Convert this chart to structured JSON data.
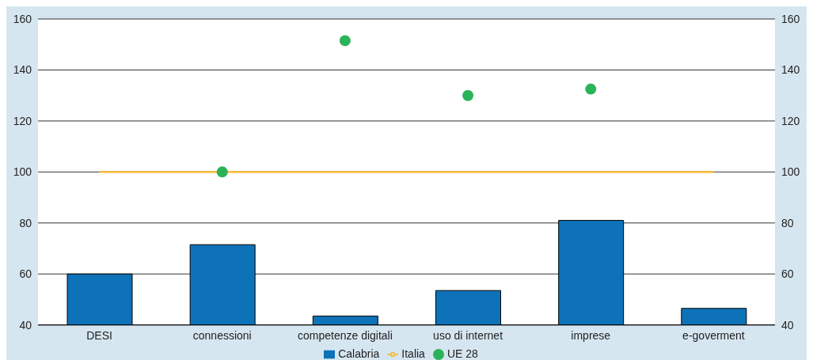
{
  "chart_data": {
    "type": "bar",
    "categories": [
      "DESI",
      "connessioni",
      "competenze digitali",
      "uso di internet",
      "imprese",
      "e-goverment"
    ],
    "series": [
      {
        "name": "Calabria",
        "color": "#0e72b8",
        "values": [
          60,
          71.5,
          43.5,
          53.5,
          81,
          46.5
        ]
      },
      {
        "name": "Italia",
        "type": "line",
        "color": "#f4b93a",
        "values": [
          100,
          100,
          100,
          100,
          100,
          100
        ]
      },
      {
        "name": "UE 28",
        "type": "scatter",
        "color": "#2bb35a",
        "values": [
          null,
          100,
          151.5,
          130,
          132.5,
          null
        ]
      }
    ],
    "ylim": [
      40,
      160
    ],
    "yticks": [
      40,
      60,
      80,
      100,
      120,
      140,
      160
    ],
    "y2lim": [
      40,
      160
    ],
    "y2ticks": [
      40,
      60,
      80,
      100,
      120,
      140,
      160
    ],
    "grid": "y",
    "legend": "bottom"
  }
}
